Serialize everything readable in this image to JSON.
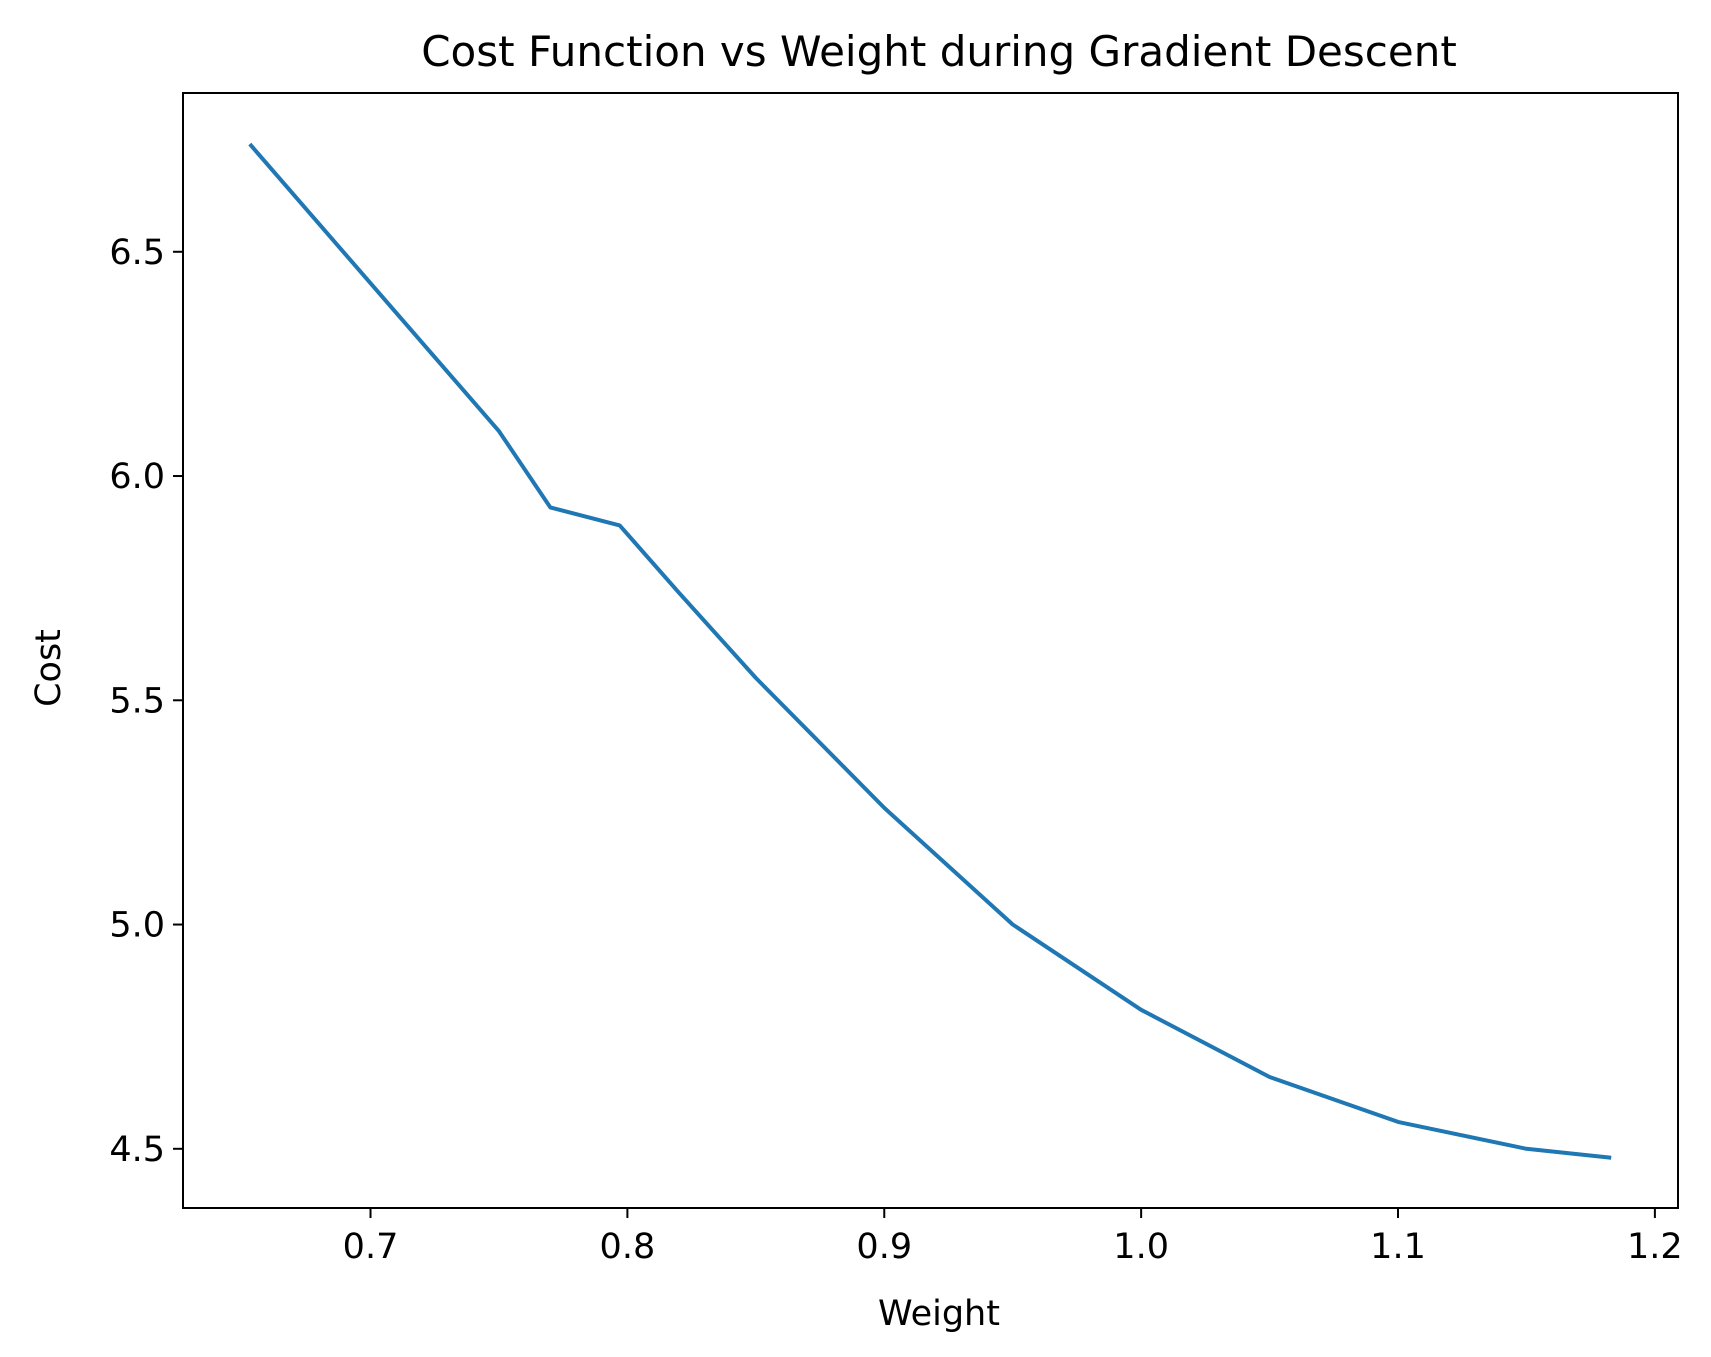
{
  "chart_data": {
    "type": "line",
    "title": "Cost Function vs Weight during Gradient Descent",
    "xlabel": "Weight",
    "ylabel": "Cost",
    "xlim": [
      0.627,
      1.209
    ],
    "ylim": [
      4.368,
      6.854
    ],
    "xticks": [
      0.7,
      0.8,
      0.9,
      1.0,
      1.1,
      1.2
    ],
    "xtick_labels": [
      "0.7",
      "0.8",
      "0.9",
      "1.0",
      "1.1",
      "1.2"
    ],
    "yticks": [
      4.5,
      5.0,
      5.5,
      6.0,
      6.5
    ],
    "ytick_labels": [
      "4.5",
      "5.0",
      "5.5",
      "6.0",
      "6.5"
    ],
    "grid": false,
    "legend": "none",
    "line_color": "#1f77b4",
    "series": [
      {
        "x": [
          0.653,
          0.7,
          0.75,
          0.77,
          0.797,
          0.82,
          0.85,
          0.9,
          0.95,
          1.0,
          1.05,
          1.1,
          1.15,
          1.183
        ],
        "y": [
          6.74,
          6.43,
          6.1,
          5.93,
          5.89,
          5.74,
          5.55,
          5.26,
          5.0,
          4.81,
          4.66,
          4.56,
          4.5,
          4.48
        ]
      }
    ]
  }
}
